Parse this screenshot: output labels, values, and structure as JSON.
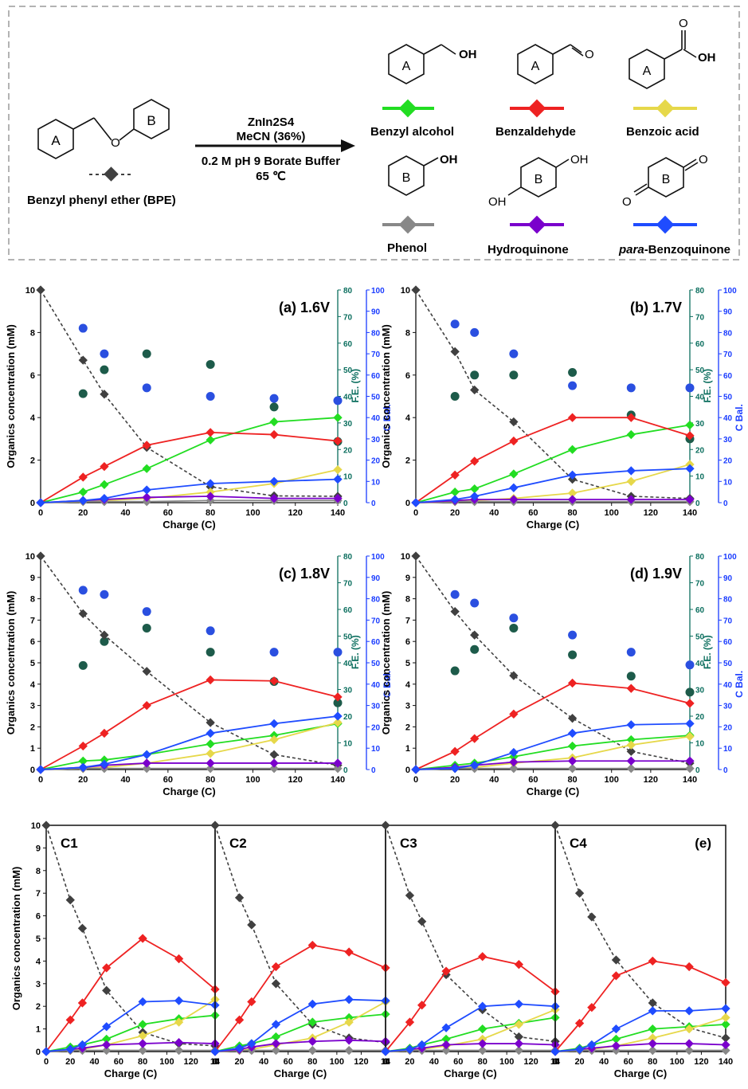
{
  "scheme": {
    "reactant": "Benzyl phenyl ether (BPE)",
    "ring_a": "A",
    "ring_b": "B",
    "conditions": [
      "ZnIn2S4",
      "MeCN (36%)",
      "0.2 M pH 9 Borate Buffer",
      "65 ℃"
    ],
    "products": [
      {
        "name": "Benzyl alcohol",
        "group": "OH",
        "color": "#22dd22"
      },
      {
        "name": "Benzaldehyde",
        "group": "O",
        "color": "#ee2222"
      },
      {
        "name": "Benzoic acid",
        "group": "OH",
        "color": "#e6d84a"
      },
      {
        "name": "Phenol",
        "group": "OH",
        "color": "#888888"
      },
      {
        "name": "Hydroquinone",
        "group": "OH",
        "color": "#7a00cc"
      },
      {
        "name": "para-Benzoquinone",
        "group": "O",
        "color": "#1f4cff"
      }
    ],
    "bpe_color": "#404040"
  },
  "chart_data": [
    {
      "type": "line",
      "title": "(a) 1.6V",
      "xlabel": "Charge (C)",
      "ylabel": "Organics concentration (mM)",
      "y2label": "F.E. (%)",
      "y3label": "C Bal.",
      "x": [
        0,
        20,
        30,
        50,
        80,
        110,
        140
      ],
      "xlim": [
        0,
        140
      ],
      "ylim": [
        0,
        10
      ],
      "y2lim": [
        0,
        80
      ],
      "y3lim": [
        0,
        100
      ],
      "series": [
        {
          "name": "Benzyl phenyl ether (BPE)",
          "values": [
            10,
            6.7,
            5.1,
            2.6,
            0.75,
            0.32,
            0.3
          ]
        },
        {
          "name": "Benzyl alcohol",
          "values": [
            0,
            0.5,
            0.85,
            1.6,
            2.95,
            3.8,
            4.0
          ]
        },
        {
          "name": "Benzaldehyde",
          "values": [
            0,
            1.2,
            1.7,
            2.7,
            3.3,
            3.2,
            2.9
          ]
        },
        {
          "name": "Benzoic acid",
          "values": [
            0,
            0.05,
            0.1,
            0.2,
            0.5,
            0.9,
            1.55
          ]
        },
        {
          "name": "Phenol",
          "values": [
            0,
            0.05,
            0.05,
            0.05,
            0.1,
            0.1,
            0.1
          ]
        },
        {
          "name": "Hydroquinone",
          "values": [
            0,
            0.1,
            0.15,
            0.25,
            0.3,
            0.2,
            0.2
          ]
        },
        {
          "name": "para-Benzoquinone",
          "values": [
            0,
            0.1,
            0.2,
            0.6,
            0.9,
            1.0,
            1.1
          ]
        }
      ],
      "fe": [
        41,
        50,
        56,
        52,
        36,
        23
      ],
      "cbal": [
        82,
        70,
        54,
        50,
        49,
        48
      ]
    },
    {
      "type": "line",
      "title": "(b) 1.7V",
      "xlabel": "Charge (C)",
      "ylabel": "Organics concentration (mM)",
      "y2label": "F.E. (%)",
      "y3label": "C Bal.",
      "x": [
        0,
        20,
        30,
        50,
        80,
        110,
        140
      ],
      "xlim": [
        0,
        140
      ],
      "ylim": [
        0,
        10
      ],
      "y2lim": [
        0,
        80
      ],
      "y3lim": [
        0,
        100
      ],
      "series": [
        {
          "name": "Benzyl phenyl ether (BPE)",
          "values": [
            10,
            7.1,
            5.3,
            3.8,
            1.1,
            0.3,
            0.2
          ]
        },
        {
          "name": "Benzyl alcohol",
          "values": [
            0,
            0.5,
            0.65,
            1.35,
            2.5,
            3.2,
            3.65
          ]
        },
        {
          "name": "Benzaldehyde",
          "values": [
            0,
            1.3,
            1.95,
            2.9,
            4.0,
            4.0,
            3.15
          ]
        },
        {
          "name": "Benzoic acid",
          "values": [
            0,
            0.05,
            0.1,
            0.2,
            0.45,
            1.0,
            1.8
          ]
        },
        {
          "name": "Phenol",
          "values": [
            0,
            0.05,
            0.05,
            0.05,
            0.05,
            0.05,
            0.05
          ]
        },
        {
          "name": "Hydroquinone",
          "values": [
            0,
            0.1,
            0.15,
            0.15,
            0.15,
            0.15,
            0.15
          ]
        },
        {
          "name": "para-Benzoquinone",
          "values": [
            0,
            0.15,
            0.3,
            0.7,
            1.3,
            1.5,
            1.6
          ]
        }
      ],
      "fe": [
        40,
        48,
        48,
        49,
        33,
        24
      ],
      "cbal": [
        84,
        80,
        70,
        55,
        54,
        54
      ]
    },
    {
      "type": "line",
      "title": "(c) 1.8V",
      "xlabel": "Charge (C)",
      "ylabel": "Organics concentration (mM)",
      "y2label": "F.E. (%)",
      "y3label": "C Bal.",
      "x": [
        0,
        20,
        30,
        50,
        80,
        110,
        140
      ],
      "xlim": [
        0,
        140
      ],
      "ylim": [
        0,
        10
      ],
      "y2lim": [
        0,
        80
      ],
      "y3lim": [
        0,
        100
      ],
      "series": [
        {
          "name": "Benzyl phenyl ether (BPE)",
          "values": [
            10,
            7.3,
            6.3,
            4.6,
            2.2,
            0.7,
            0.2
          ]
        },
        {
          "name": "Benzyl alcohol",
          "values": [
            0,
            0.4,
            0.45,
            0.7,
            1.2,
            1.6,
            2.15
          ]
        },
        {
          "name": "Benzaldehyde",
          "values": [
            0,
            1.1,
            1.7,
            3.0,
            4.2,
            4.15,
            3.4
          ]
        },
        {
          "name": "Benzoic acid",
          "values": [
            0,
            0.05,
            0.1,
            0.3,
            0.75,
            1.4,
            2.2
          ]
        },
        {
          "name": "Phenol",
          "values": [
            0,
            0.05,
            0.05,
            0.05,
            0.05,
            0.05,
            0.05
          ]
        },
        {
          "name": "Hydroquinone",
          "values": [
            0,
            0.1,
            0.2,
            0.3,
            0.3,
            0.3,
            0.3
          ]
        },
        {
          "name": "para-Benzoquinone",
          "values": [
            0,
            0.1,
            0.25,
            0.7,
            1.7,
            2.15,
            2.5
          ]
        }
      ],
      "fe": [
        39,
        48,
        53,
        44,
        33,
        25
      ],
      "cbal": [
        84,
        82,
        74,
        65,
        55,
        55
      ]
    },
    {
      "type": "line",
      "title": "(d) 1.9V",
      "xlabel": "Charge (C)",
      "ylabel": "Organics concentration (mM)",
      "y2label": "F.E. (%)",
      "y3label": "C Bal.",
      "x": [
        0,
        20,
        30,
        50,
        80,
        110,
        140
      ],
      "xlim": [
        0,
        140
      ],
      "ylim": [
        0,
        10
      ],
      "y2lim": [
        0,
        80
      ],
      "y3lim": [
        0,
        100
      ],
      "series": [
        {
          "name": "Benzyl phenyl ether (BPE)",
          "values": [
            10,
            7.4,
            6.3,
            4.4,
            2.4,
            0.85,
            0.3
          ]
        },
        {
          "name": "Benzyl alcohol",
          "values": [
            0,
            0.2,
            0.3,
            0.6,
            1.1,
            1.4,
            1.6
          ]
        },
        {
          "name": "Benzaldehyde",
          "values": [
            0,
            0.85,
            1.45,
            2.6,
            4.05,
            3.8,
            3.1
          ]
        },
        {
          "name": "Benzoic acid",
          "values": [
            0,
            0.05,
            0.1,
            0.3,
            0.55,
            1.15,
            1.55
          ]
        },
        {
          "name": "Phenol",
          "values": [
            0,
            0.05,
            0.05,
            0.05,
            0.05,
            0.05,
            0.05
          ]
        },
        {
          "name": "Hydroquinone",
          "values": [
            0,
            0.1,
            0.2,
            0.35,
            0.4,
            0.4,
            0.4
          ]
        },
        {
          "name": "para-Benzoquinone",
          "values": [
            0,
            0.05,
            0.2,
            0.8,
            1.7,
            2.1,
            2.15
          ]
        }
      ],
      "fe": [
        37,
        45,
        53,
        43,
        35,
        29
      ],
      "cbal": [
        82,
        78,
        71,
        63,
        55,
        49
      ]
    },
    {
      "type": "line",
      "title": "C1",
      "xlabel": "Charge (C)",
      "ylabel": "Organics concentration (mM)",
      "x": [
        0,
        20,
        30,
        50,
        80,
        110,
        140
      ],
      "xlim": [
        0,
        140
      ],
      "ylim": [
        0,
        10
      ],
      "series": [
        {
          "name": "Benzyl phenyl ether (BPE)",
          "values": [
            10,
            6.7,
            5.45,
            2.7,
            0.85,
            0.35,
            0.25
          ]
        },
        {
          "name": "Benzyl alcohol",
          "values": [
            0,
            0.2,
            0.3,
            0.55,
            1.2,
            1.45,
            1.6
          ]
        },
        {
          "name": "Benzaldehyde",
          "values": [
            0,
            1.4,
            2.15,
            3.7,
            5.0,
            4.1,
            2.75
          ]
        },
        {
          "name": "Benzoic acid",
          "values": [
            0,
            0.05,
            0.1,
            0.3,
            0.7,
            1.3,
            2.3
          ]
        },
        {
          "name": "Phenol",
          "values": [
            0,
            0.05,
            0.05,
            0.05,
            0.05,
            0.05,
            0.05
          ]
        },
        {
          "name": "Hydroquinone",
          "values": [
            0,
            0.1,
            0.15,
            0.3,
            0.35,
            0.4,
            0.35
          ]
        },
        {
          "name": "para-Benzoquinone",
          "values": [
            0,
            0.1,
            0.3,
            1.1,
            2.2,
            2.25,
            2.05
          ]
        }
      ]
    },
    {
      "type": "line",
      "title": "C2",
      "xlabel": "Charge (C)",
      "x": [
        0,
        20,
        30,
        50,
        80,
        110,
        140
      ],
      "xlim": [
        0,
        140
      ],
      "ylim": [
        0,
        10
      ],
      "series": [
        {
          "name": "Benzyl phenyl ether (BPE)",
          "values": [
            10,
            6.8,
            5.6,
            3.0,
            1.2,
            0.6,
            0.4
          ]
        },
        {
          "name": "Benzyl alcohol",
          "values": [
            0,
            0.25,
            0.35,
            0.65,
            1.3,
            1.5,
            1.65
          ]
        },
        {
          "name": "Benzaldehyde",
          "values": [
            0,
            1.4,
            2.2,
            3.75,
            4.7,
            4.4,
            3.7
          ]
        },
        {
          "name": "Benzoic acid",
          "values": [
            0,
            0.05,
            0.1,
            0.3,
            0.6,
            1.3,
            2.2
          ]
        },
        {
          "name": "Phenol",
          "values": [
            0,
            0.05,
            0.05,
            0.05,
            0.05,
            0.05,
            0.05
          ]
        },
        {
          "name": "Hydroquinone",
          "values": [
            0,
            0.1,
            0.2,
            0.35,
            0.45,
            0.5,
            0.45
          ]
        },
        {
          "name": "para-Benzoquinone",
          "values": [
            0,
            0.15,
            0.35,
            1.2,
            2.1,
            2.3,
            2.25
          ]
        }
      ]
    },
    {
      "type": "line",
      "title": "C3",
      "xlabel": "Charge (C)",
      "x": [
        0,
        20,
        30,
        50,
        80,
        110,
        140
      ],
      "xlim": [
        0,
        140
      ],
      "ylim": [
        0,
        10
      ],
      "series": [
        {
          "name": "Benzyl phenyl ether (BPE)",
          "values": [
            10,
            6.9,
            5.75,
            3.4,
            1.85,
            0.65,
            0.45
          ]
        },
        {
          "name": "Benzyl alcohol",
          "values": [
            0,
            0.15,
            0.3,
            0.55,
            1.0,
            1.25,
            1.5
          ]
        },
        {
          "name": "Benzaldehyde",
          "values": [
            0,
            1.3,
            2.05,
            3.55,
            4.2,
            3.85,
            2.65
          ]
        },
        {
          "name": "Benzoic acid",
          "values": [
            0,
            0.05,
            0.1,
            0.25,
            0.55,
            1.2,
            1.85
          ]
        },
        {
          "name": "Phenol",
          "values": [
            0,
            0.05,
            0.05,
            0.05,
            0.05,
            0.05,
            0.05
          ]
        },
        {
          "name": "Hydroquinone",
          "values": [
            0,
            0.1,
            0.15,
            0.3,
            0.35,
            0.35,
            0.3
          ]
        },
        {
          "name": "para-Benzoquinone",
          "values": [
            0,
            0.1,
            0.3,
            1.05,
            2.0,
            2.1,
            2.0
          ]
        }
      ]
    },
    {
      "type": "line",
      "title": "C4",
      "annotation": "(e)",
      "xlabel": "Charge (C)",
      "x": [
        0,
        20,
        30,
        50,
        80,
        110,
        140
      ],
      "xlim": [
        0,
        140
      ],
      "ylim": [
        0,
        10
      ],
      "series": [
        {
          "name": "Benzyl phenyl ether (BPE)",
          "values": [
            10,
            7.0,
            5.95,
            4.05,
            2.15,
            1.05,
            0.6
          ]
        },
        {
          "name": "Benzyl alcohol",
          "values": [
            0,
            0.15,
            0.3,
            0.55,
            1.0,
            1.1,
            1.2
          ]
        },
        {
          "name": "Benzaldehyde",
          "values": [
            0,
            1.25,
            1.95,
            3.35,
            4.0,
            3.75,
            3.05
          ]
        },
        {
          "name": "Benzoic acid",
          "values": [
            0,
            0.05,
            0.1,
            0.25,
            0.6,
            1.0,
            1.5
          ]
        },
        {
          "name": "Phenol",
          "values": [
            0,
            0.05,
            0.05,
            0.05,
            0.05,
            0.05,
            0.05
          ]
        },
        {
          "name": "Hydroquinone",
          "values": [
            0,
            0.1,
            0.15,
            0.25,
            0.35,
            0.35,
            0.3
          ]
        },
        {
          "name": "para-Benzoquinone",
          "values": [
            0,
            0.1,
            0.3,
            1.0,
            1.8,
            1.8,
            1.9
          ]
        }
      ]
    }
  ],
  "colors": {
    "fe_marker": "#1d5b4a",
    "cbal_marker": "#2a4fe0",
    "fe_axis": "#0b6e5e",
    "cbal_axis": "#1a3cff"
  }
}
